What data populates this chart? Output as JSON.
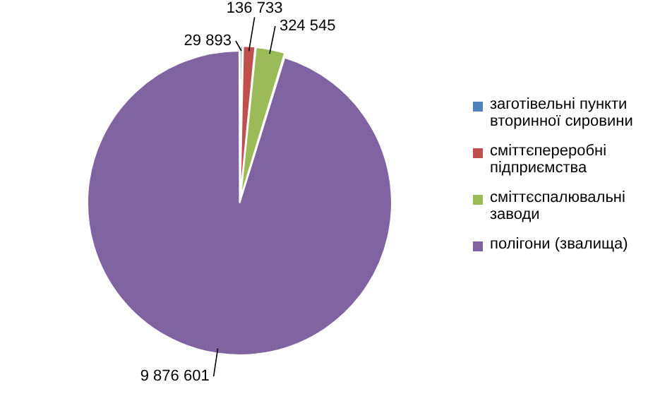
{
  "chart_data": {
    "type": "pie",
    "categories": [
      "заготівельні пункти вторинної сировини",
      "сміттєпереробні підприємства",
      "сміттєспалювальні заводи",
      "полігони (звалища)"
    ],
    "values": [
      29893,
      136733,
      324545,
      9876601
    ],
    "value_labels": [
      "29 893",
      "136 733",
      "324 545",
      "9 876 601"
    ],
    "colors": [
      "#4f81bd",
      "#c0504d",
      "#9bbb59",
      "#8064a2"
    ],
    "legend": "right"
  }
}
